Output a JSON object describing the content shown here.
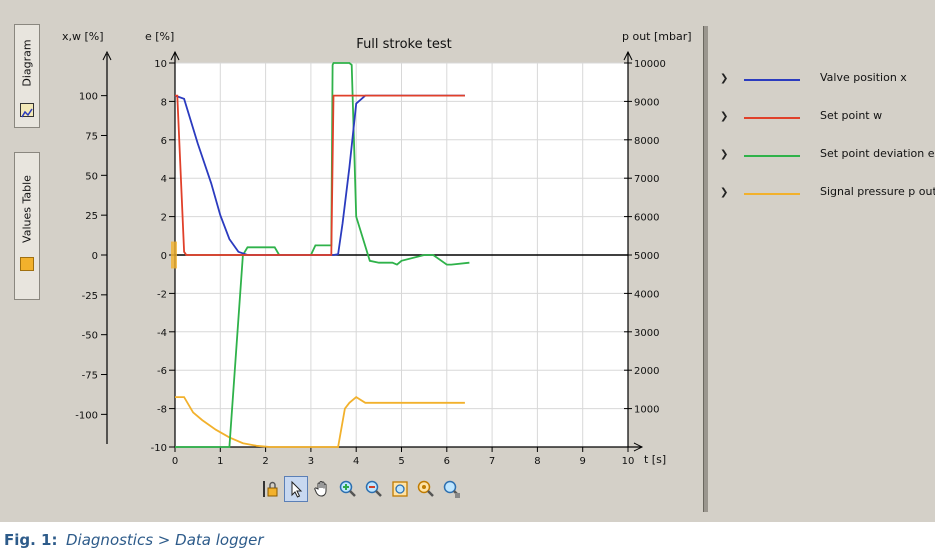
{
  "tabs": [
    {
      "label": "Diagram",
      "active": true,
      "icon": "chart-icon"
    },
    {
      "label": "Values Table",
      "active": false,
      "icon": "table-icon"
    }
  ],
  "legend": [
    {
      "label": "Valve position x",
      "color": "#2b3bbf"
    },
    {
      "label": "Set point w",
      "color": "#e0402a"
    },
    {
      "label": "Set point deviation e",
      "color": "#2fb24a"
    },
    {
      "label": "Signal pressure p out",
      "color": "#f2b12c"
    }
  ],
  "toolbar": [
    "cursor-lock-icon",
    "pointer-icon",
    "pan-hand-icon",
    "zoom-in-icon",
    "zoom-out-icon",
    "zoom-fit-icon",
    "zoom-reset-icon",
    "zoom-1to1-icon"
  ],
  "caption": {
    "number": "Fig. 1:",
    "text": "Diagnostics > Data logger"
  },
  "chart_data": {
    "type": "line",
    "title": "Full stroke test",
    "xlabel": "t  [s]",
    "x_ticks": [
      0,
      1,
      2,
      3,
      4,
      5,
      6,
      7,
      8,
      9,
      10
    ],
    "xlim": [
      0,
      10
    ],
    "grid": true,
    "legend_position": "right",
    "axes": {
      "xw": {
        "label": "x,w  [%]",
        "ylim": [
          -120,
          120
        ],
        "ticks": [
          100,
          75,
          50,
          25,
          0,
          -25,
          -50,
          -75,
          -100
        ]
      },
      "e": {
        "label": "e  [%]",
        "ylim": [
          -10,
          10
        ],
        "ticks": [
          10,
          8,
          6,
          4,
          2,
          0,
          -2,
          -4,
          -6,
          -8,
          -10
        ]
      },
      "pout": {
        "label": "p out  [mbar]",
        "ylim": [
          0,
          10000
        ],
        "ticks": [
          10000,
          9000,
          8000,
          7000,
          6000,
          5000,
          4000,
          3000,
          2000,
          1000
        ]
      }
    },
    "series": [
      {
        "name": "Valve position x",
        "axis": "xw",
        "color": "#2b3bbf",
        "x": [
          0,
          0.2,
          0.5,
          0.8,
          1.0,
          1.2,
          1.4,
          1.6,
          3.5,
          3.6,
          3.7,
          3.85,
          4.0,
          4.2,
          6.4
        ],
        "y": [
          100,
          98,
          70,
          45,
          25,
          10,
          2,
          0,
          0,
          0.5,
          20,
          55,
          95,
          100,
          100
        ]
      },
      {
        "name": "Set point w",
        "axis": "xw",
        "color": "#e0402a",
        "x": [
          0,
          0.05,
          0.2,
          0.25,
          3.3,
          3.45,
          3.5,
          6.4
        ],
        "y": [
          100,
          100,
          2,
          0,
          0,
          0,
          100,
          100
        ]
      },
      {
        "name": "Set point deviation e",
        "axis": "e",
        "color": "#2fb24a",
        "x": [
          0,
          1.2,
          1.5,
          1.6,
          2.0,
          2.2,
          2.3,
          3.0,
          3.1,
          3.45,
          3.48,
          3.5,
          3.85,
          3.9,
          4.0,
          4.3,
          4.5,
          4.8,
          4.9,
          5.0,
          5.5,
          5.7,
          6.0,
          6.1,
          6.5
        ],
        "y": [
          -10,
          -10,
          0,
          0.4,
          0.4,
          0.4,
          0,
          0,
          0.5,
          0.5,
          9.9,
          10,
          10,
          9.9,
          2,
          -0.3,
          -0.4,
          -0.4,
          -0.5,
          -0.3,
          0,
          0,
          -0.5,
          -0.5,
          -0.4
        ]
      },
      {
        "name": "Signal pressure p out",
        "axis": "pout",
        "color": "#f2b12c",
        "x": [
          0,
          0.2,
          0.4,
          0.6,
          0.9,
          1.2,
          1.5,
          1.8,
          2.1,
          3.6,
          3.75,
          3.85,
          4.0,
          4.2,
          6.4
        ],
        "y": [
          1300,
          1300,
          900,
          700,
          450,
          250,
          100,
          30,
          0,
          0,
          1000,
          1150,
          1300,
          1150,
          1150
        ]
      }
    ]
  }
}
